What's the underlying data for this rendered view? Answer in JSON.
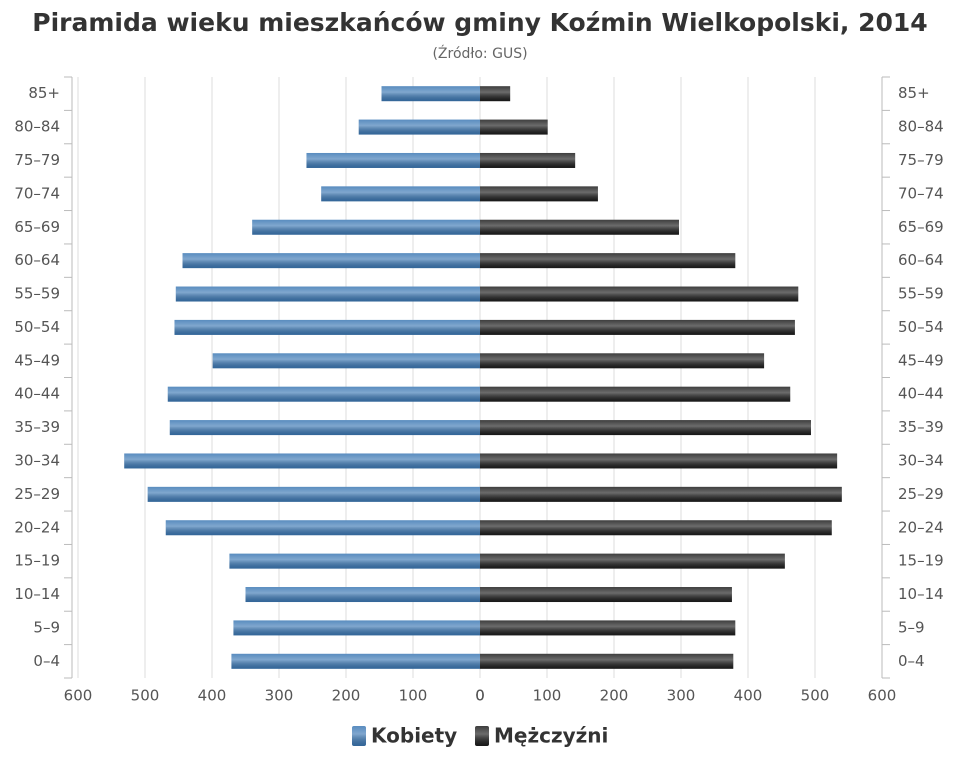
{
  "chart_data": {
    "type": "pyramid",
    "title": "Piramida wieku mieszkańców gminy Koźmin Wielkopolski, 2014",
    "subtitle": "(Źródło: GUS)",
    "categories": [
      "85+",
      "80–84",
      "75–79",
      "70–74",
      "65–69",
      "60–64",
      "55–59",
      "50–54",
      "45–49",
      "40–44",
      "35–39",
      "30–34",
      "25–29",
      "20–24",
      "15–19",
      "10–14",
      "5–9",
      "0–4"
    ],
    "series": [
      {
        "name": "Kobiety",
        "color": "#3c78b4",
        "side": "left",
        "values": [
          147,
          181,
          259,
          237,
          340,
          444,
          454,
          456,
          399,
          466,
          463,
          531,
          496,
          469,
          374,
          350,
          368,
          371
        ]
      },
      {
        "name": "Mężczyźni",
        "color": "#1c1c1c",
        "side": "right",
        "values": [
          45,
          101,
          142,
          176,
          297,
          381,
          475,
          470,
          424,
          463,
          494,
          533,
          540,
          525,
          455,
          376,
          381,
          378
        ]
      }
    ],
    "xlim": [
      0,
      600
    ],
    "xticks": [
      0,
      100,
      200,
      300,
      400,
      500,
      600
    ],
    "grid": true
  }
}
